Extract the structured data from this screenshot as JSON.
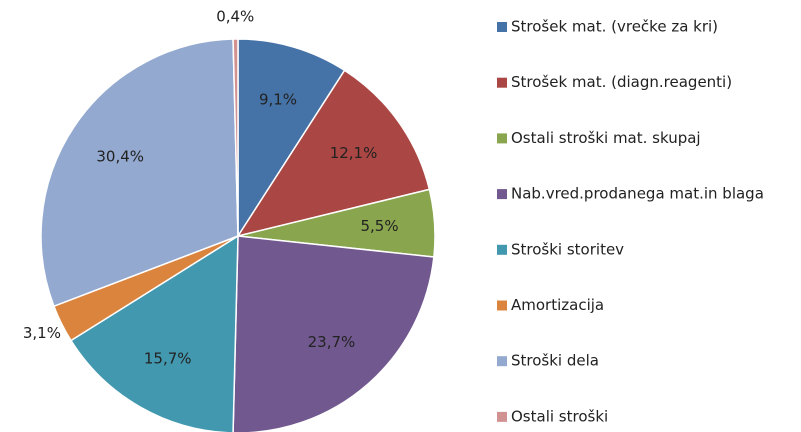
{
  "chart_data": {
    "type": "pie",
    "categories": [
      "Strošek mat. (vrečke za kri)",
      "Strošek mat. (diagn.reagenti)",
      "Ostali stroški mat. skupaj",
      "Nab.vred.prodanega mat.in blaga",
      "Stroški storitev",
      "Amortizacija",
      "Stroški dela",
      "Ostali stroški"
    ],
    "values": [
      9.1,
      12.1,
      5.5,
      23.7,
      15.7,
      3.1,
      30.4,
      0.4
    ],
    "value_labels": [
      "9,1%",
      "12,1%",
      "5,5%",
      "23,7%",
      "15,7%",
      "3,1%",
      "30,4%",
      "0,4%"
    ],
    "colors": [
      "#4572a7",
      "#aa4643",
      "#89a54e",
      "#71588f",
      "#4198af",
      "#db843d",
      "#93a9cf",
      "#d19392"
    ],
    "legend": "right"
  }
}
